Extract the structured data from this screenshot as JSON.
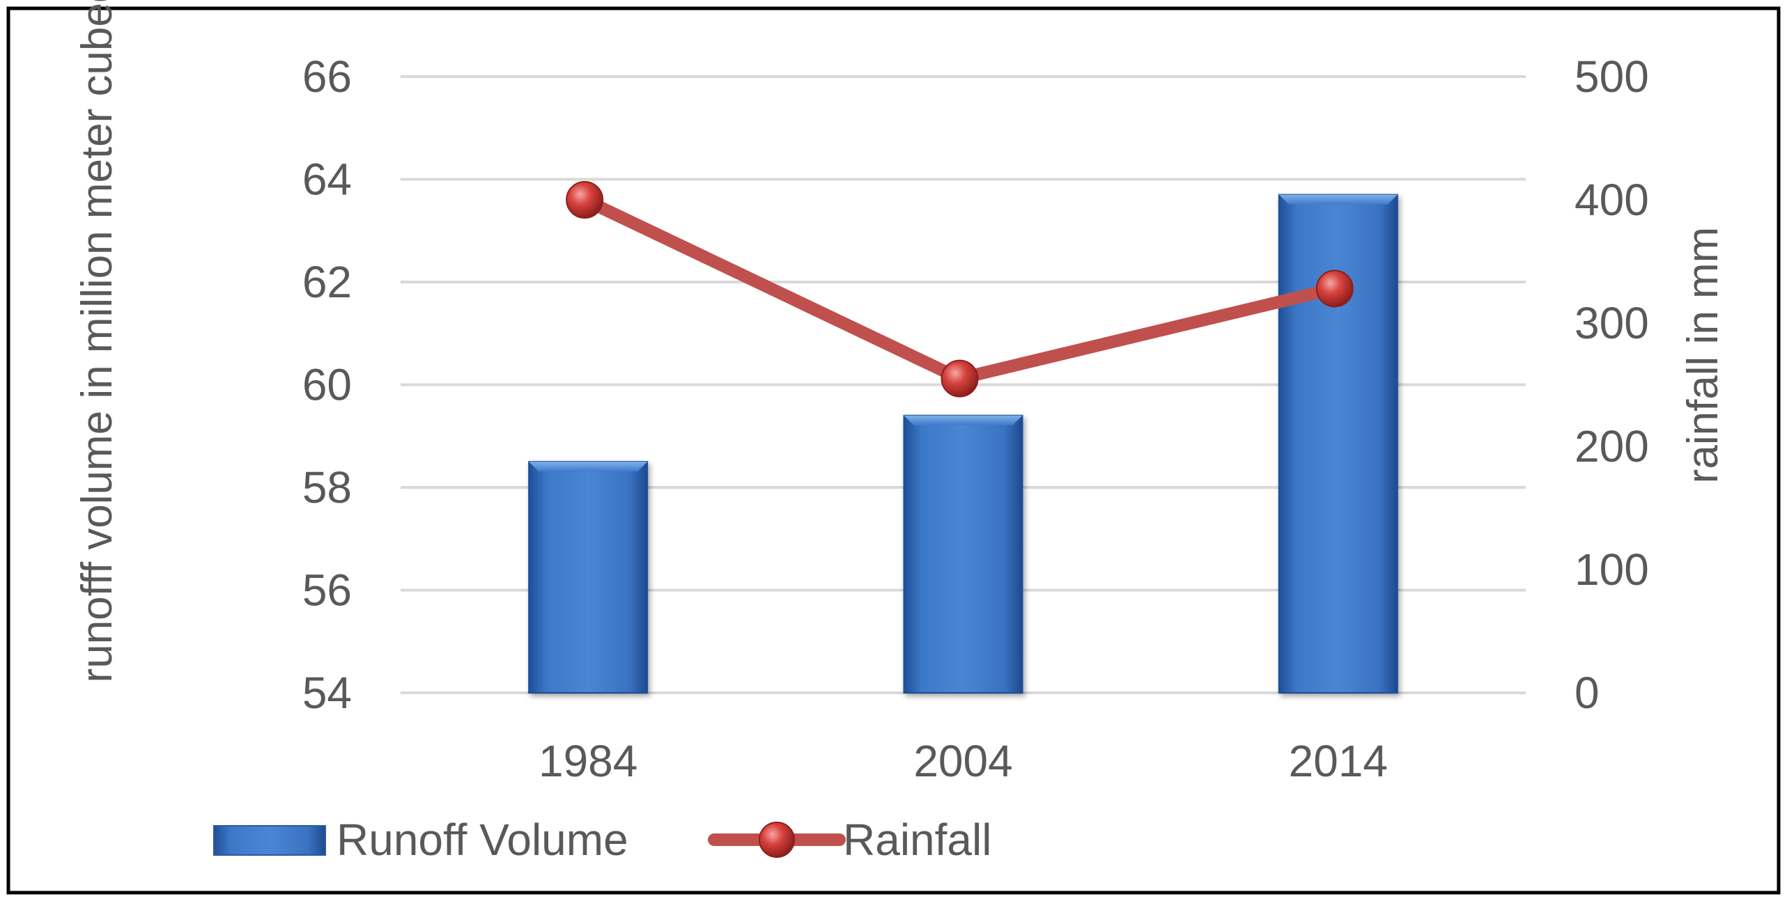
{
  "chart_data": {
    "type": "bar",
    "categories": [
      "1984",
      "2004",
      "2014"
    ],
    "series": [
      {
        "name": "Runoff Volume",
        "type": "bar",
        "axis": "left",
        "values": [
          58.5,
          59.4,
          63.7
        ],
        "color": "#3a73c4"
      },
      {
        "name": "Rainfall",
        "type": "line",
        "axis": "right",
        "values": [
          400,
          255,
          328
        ],
        "color": "#c0504d"
      }
    ],
    "ylabel": "runofff volume in million meter cubed",
    "ylabel_right": "rainfall in  mm",
    "ylim": [
      54,
      66
    ],
    "ylim_right": [
      0,
      500
    ],
    "yticks": [
      "54",
      "56",
      "58",
      "60",
      "62",
      "64",
      "66"
    ],
    "yticks_right": [
      "0",
      "100",
      "200",
      "300",
      "400",
      "500"
    ],
    "grid": true,
    "legend_position": "bottom",
    "legend": [
      "Runoff Volume",
      "Rainfall"
    ]
  }
}
